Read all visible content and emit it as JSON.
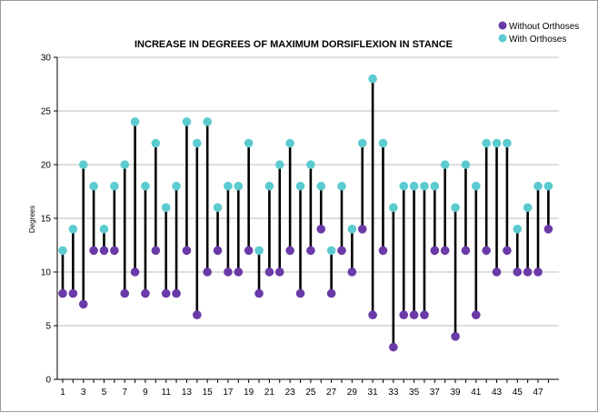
{
  "chart_data": {
    "type": "dot-range",
    "title": "INCREASE IN DEGREES OF MAXIMUM DORSIFLEXION IN STANCE",
    "xlabel": "",
    "ylabel": "Degrees",
    "ylim": [
      0,
      30
    ],
    "yticks": [
      0,
      5,
      10,
      15,
      20,
      25,
      30
    ],
    "x": [
      1,
      2,
      3,
      4,
      5,
      6,
      7,
      8,
      9,
      10,
      11,
      12,
      13,
      14,
      15,
      16,
      17,
      18,
      19,
      20,
      21,
      22,
      23,
      24,
      25,
      26,
      27,
      28,
      29,
      30,
      31,
      32,
      33,
      34,
      35,
      36,
      37,
      38,
      39,
      40,
      41,
      42,
      43,
      44,
      45,
      46,
      47,
      48
    ],
    "xtick_labels": [
      "1",
      "3",
      "5",
      "7",
      "9",
      "11",
      "13",
      "15",
      "17",
      "19",
      "21",
      "23",
      "25",
      "27",
      "29",
      "31",
      "33",
      "35",
      "37",
      "39",
      "41",
      "43",
      "45",
      "47"
    ],
    "grid": true,
    "legend_position": "top-right",
    "colors": {
      "without": "#6a3aa8",
      "with": "#5ccbd0",
      "connector": "#000000",
      "grid": "#bdbdbd"
    },
    "series": [
      {
        "name": "Without Orthoses",
        "values": [
          8,
          8,
          7,
          12,
          12,
          12,
          8,
          10,
          8,
          12,
          8,
          8,
          12,
          6,
          10,
          12,
          10,
          10,
          12,
          8,
          10,
          10,
          12,
          8,
          12,
          14,
          8,
          12,
          10,
          14,
          6,
          12,
          3,
          6,
          6,
          6,
          12,
          12,
          4,
          12,
          6,
          12,
          10,
          12,
          10,
          10,
          10,
          14
        ]
      },
      {
        "name": "With Orthoses",
        "values": [
          12,
          14,
          20,
          18,
          14,
          18,
          20,
          24,
          18,
          22,
          16,
          18,
          24,
          22,
          24,
          16,
          18,
          18,
          22,
          12,
          18,
          20,
          22,
          18,
          20,
          18,
          12,
          18,
          14,
          22,
          28,
          22,
          16,
          18,
          18,
          18,
          18,
          20,
          16,
          20,
          18,
          22,
          22,
          22,
          14,
          16,
          18,
          18
        ]
      }
    ]
  }
}
